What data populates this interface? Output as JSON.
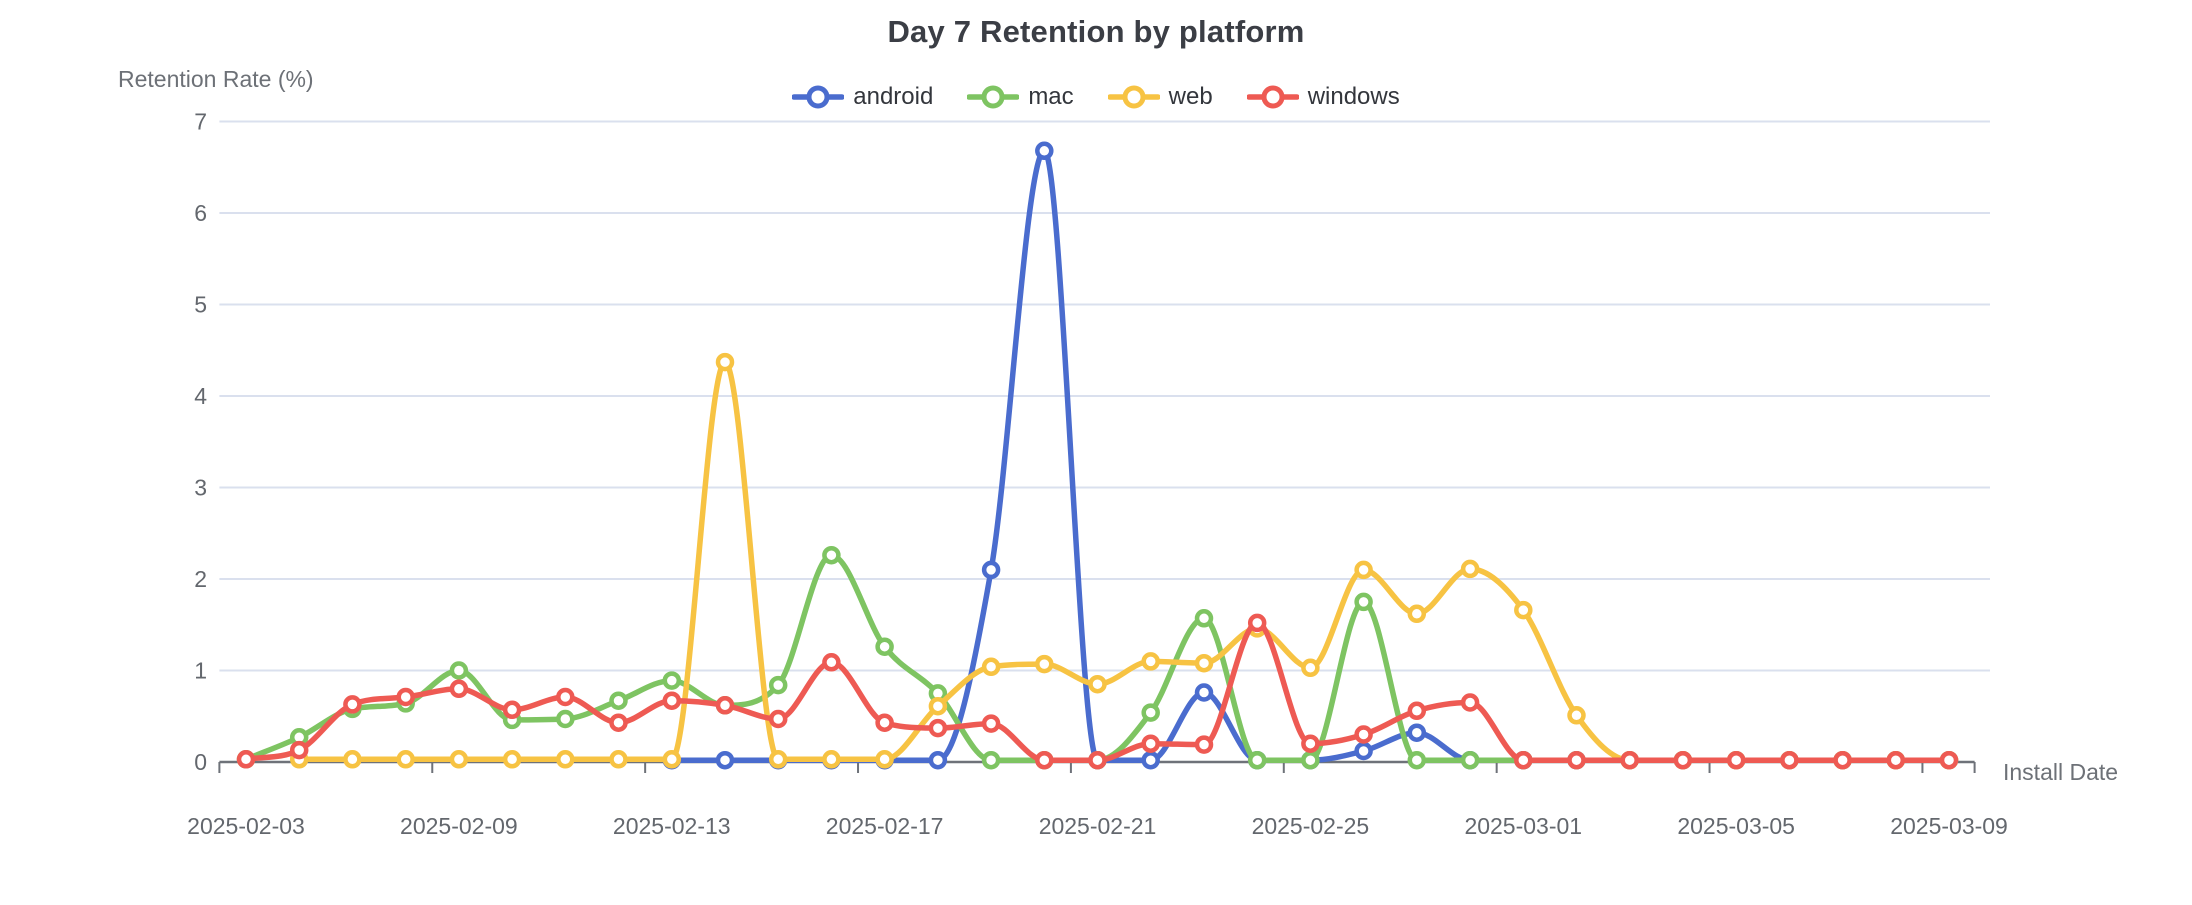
{
  "chart_data": {
    "type": "line",
    "title": "Day 7 Retention by platform",
    "xlabel": "Install Date",
    "ylabel": "Retention Rate (%)",
    "ylim": [
      0,
      7
    ],
    "y_ticks": [
      0,
      1,
      2,
      3,
      4,
      5,
      6,
      7
    ],
    "grid": true,
    "legend_position": "top",
    "smooth": true,
    "marker": "open-circle",
    "categories": [
      "2025-02-03",
      "2025-02-04",
      "2025-02-06",
      "2025-02-08",
      "2025-02-09",
      "2025-02-10",
      "2025-02-11",
      "2025-02-12",
      "2025-02-13",
      "2025-02-14",
      "2025-02-15",
      "2025-02-16",
      "2025-02-17",
      "2025-02-18",
      "2025-02-19",
      "2025-02-20",
      "2025-02-21",
      "2025-02-22",
      "2025-02-23",
      "2025-02-24",
      "2025-02-25",
      "2025-02-26",
      "2025-02-27",
      "2025-02-28",
      "2025-03-01",
      "2025-03-02",
      "2025-03-03",
      "2025-03-04",
      "2025-03-05",
      "2025-03-06",
      "2025-03-07",
      "2025-03-08",
      "2025-03-09"
    ],
    "x_tick_label_indices": [
      0,
      4,
      8,
      12,
      16,
      20,
      24,
      28,
      32
    ],
    "x_tick_labels": [
      "2025-02-03",
      "2025-02-09",
      "2025-02-13",
      "2025-02-17",
      "2025-02-21",
      "2025-02-25",
      "2025-03-01",
      "2025-03-05",
      "2025-03-09"
    ],
    "series": [
      {
        "name": "android",
        "color": "#4a6cce",
        "values": [
          null,
          null,
          null,
          null,
          null,
          null,
          null,
          null,
          0.02,
          0.02,
          0.02,
          0.02,
          0.02,
          0.02,
          2.1,
          6.68,
          0.02,
          0.02,
          0.76,
          0.02,
          0.02,
          0.12,
          0.32,
          0.02,
          0.02,
          0.02,
          0.02,
          0.02,
          0.02,
          0.02,
          0.02,
          0.02,
          0.02
        ]
      },
      {
        "name": "mac",
        "color": "#7ec462",
        "values": [
          0.03,
          0.27,
          0.58,
          0.64,
          1.0,
          0.46,
          0.47,
          0.67,
          0.89,
          0.62,
          0.84,
          2.26,
          1.26,
          0.75,
          0.02,
          0.02,
          0.02,
          0.54,
          1.57,
          0.02,
          0.02,
          1.75,
          0.02,
          0.02,
          0.02,
          0.02,
          0.02,
          0.02,
          0.02,
          0.02,
          0.02,
          0.02,
          0.02
        ]
      },
      {
        "name": "web",
        "color": "#f7c343",
        "values": [
          null,
          0.03,
          0.03,
          0.03,
          0.03,
          0.03,
          0.03,
          0.03,
          0.03,
          4.37,
          0.03,
          0.03,
          0.03,
          0.61,
          1.04,
          1.07,
          0.85,
          1.1,
          1.08,
          1.46,
          1.03,
          2.1,
          1.62,
          2.11,
          1.66,
          0.51,
          0.02,
          0.02,
          0.02,
          0.02,
          0.02,
          0.02,
          0.02
        ]
      },
      {
        "name": "windows",
        "color": "#ee5a53",
        "values": [
          0.03,
          0.13,
          0.63,
          0.71,
          0.8,
          0.57,
          0.71,
          0.43,
          0.67,
          0.62,
          0.47,
          1.09,
          0.43,
          0.37,
          0.42,
          0.02,
          0.02,
          0.2,
          0.19,
          1.52,
          0.2,
          0.3,
          0.56,
          0.65,
          0.02,
          0.02,
          0.02,
          0.02,
          0.02,
          0.02,
          0.02,
          0.02,
          0.02
        ]
      }
    ]
  },
  "style": {
    "grid_color": "#dae0ee",
    "axis_color": "#6e7279",
    "tick_text_color": "#63676d",
    "title_color": "#3b3e45",
    "legend_text_color": "#33363c"
  }
}
